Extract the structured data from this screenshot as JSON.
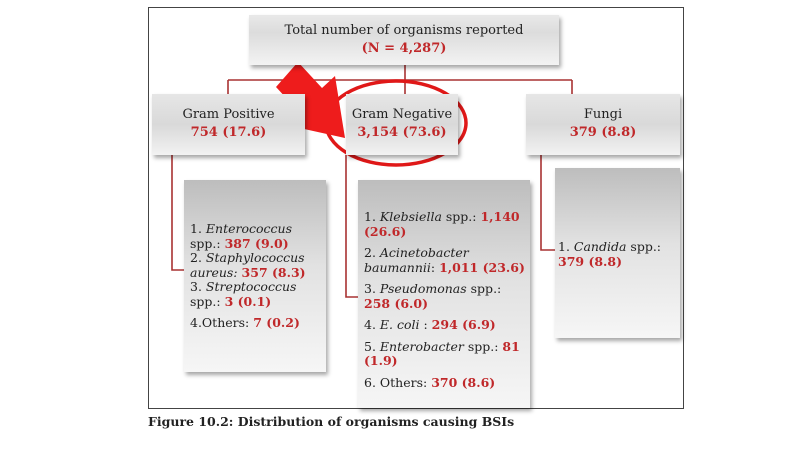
{
  "root": {
    "title": "Total number of organisms reported",
    "count": "(N = 4,287)"
  },
  "gram_positive": {
    "title": "Gram Positive",
    "count": "754 (17.6)",
    "items": [
      {
        "prefix": "1. ",
        "name": "Enterococcus",
        "suffix": " spp.:",
        "value": "387 (9.0)"
      },
      {
        "prefix": "2. ",
        "name": "Staphylococcus aureus:",
        "suffix": " ",
        "value": "357 (8.3)"
      },
      {
        "prefix": "3. ",
        "name": "Streptococcus",
        "suffix": " spp.:",
        "value": "3 (0.1)"
      },
      {
        "prefix": "4.Others: ",
        "name": "",
        "suffix": "",
        "value": "7 (0.2)"
      }
    ]
  },
  "gram_negative": {
    "title": "Gram Negative",
    "count": "3,154 (73.6)",
    "items": [
      {
        "prefix": "1. ",
        "name": "Klebsiella",
        "suffix": " spp.: ",
        "value": "1,140 (26.6)"
      },
      {
        "prefix": "2. ",
        "name": "Acinetobacter baumannii",
        "suffix": ": ",
        "value": "1,011 (23.6)"
      },
      {
        "prefix": "3. ",
        "name": "Pseudomonas",
        "suffix": " spp.: ",
        "value": "258 (6.0)"
      },
      {
        "prefix": "4. ",
        "name": "E. coli",
        "suffix": " : ",
        "value": "294 (6.9)"
      },
      {
        "prefix": "5. ",
        "name": "Enterobacter",
        "suffix": " spp.: ",
        "value": "81 (1.9)"
      },
      {
        "prefix": "6. Others: ",
        "name": "",
        "suffix": "",
        "value": "370 (8.6)"
      }
    ]
  },
  "fungi": {
    "title": "Fungi",
    "count": "379 (8.8)",
    "items": [
      {
        "prefix": "1. ",
        "name": "Candida",
        "suffix": " spp.: ",
        "value": "379 (8.8)"
      }
    ]
  },
  "caption": "Figure 10.2: Distribution of organisms causing BSIs",
  "colors": {
    "connector": "#a83232",
    "highlight": "#e01818",
    "value_text": "#c0282a"
  }
}
